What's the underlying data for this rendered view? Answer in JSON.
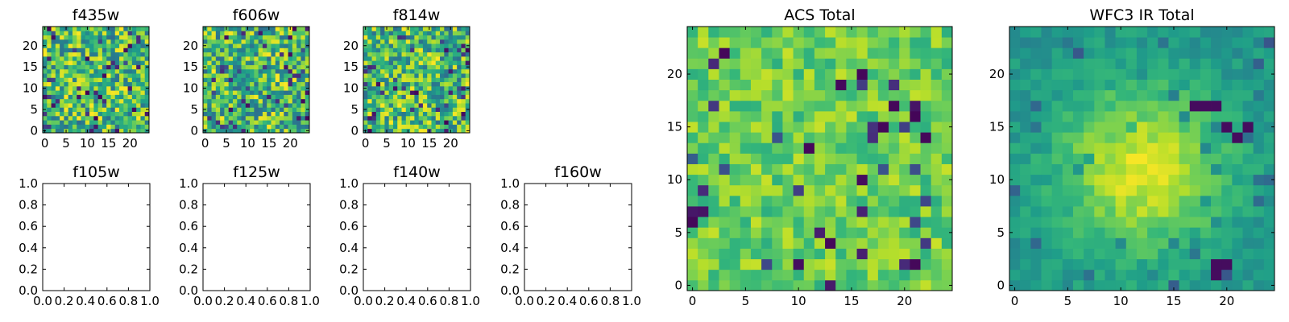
{
  "figure": {
    "panel_count": 9
  },
  "chart_data": [
    {
      "type": "heatmap",
      "title": "f435w",
      "grid_size": 25,
      "xlim": [
        -0.5,
        24.5
      ],
      "ylim": [
        -0.5,
        24.5
      ],
      "xticks": [
        0,
        5,
        10,
        15,
        20
      ],
      "yticks": [
        0,
        5,
        10,
        15,
        20
      ],
      "xtick_labels": [
        "0",
        "5",
        "10",
        "15",
        "20"
      ],
      "ytick_labels": [
        "0",
        "5",
        "10",
        "15",
        "20"
      ],
      "colormap": "viridis",
      "texture": "noise",
      "seed": 11
    },
    {
      "type": "heatmap",
      "title": "f606w",
      "grid_size": 25,
      "xlim": [
        -0.5,
        24.5
      ],
      "ylim": [
        -0.5,
        24.5
      ],
      "xticks": [
        0,
        5,
        10,
        15,
        20
      ],
      "yticks": [
        0,
        5,
        10,
        15,
        20
      ],
      "xtick_labels": [
        "0",
        "5",
        "10",
        "15",
        "20"
      ],
      "ytick_labels": [
        "0",
        "5",
        "10",
        "15",
        "20"
      ],
      "colormap": "viridis",
      "texture": "noise",
      "seed": 23
    },
    {
      "type": "heatmap",
      "title": "f814w",
      "grid_size": 25,
      "xlim": [
        -0.5,
        24.5
      ],
      "ylim": [
        -0.5,
        24.5
      ],
      "xticks": [
        0,
        5,
        10,
        15,
        20
      ],
      "yticks": [
        0,
        5,
        10,
        15,
        20
      ],
      "xtick_labels": [
        "0",
        "5",
        "10",
        "15",
        "20"
      ],
      "ytick_labels": [
        "0",
        "5",
        "10",
        "15",
        "20"
      ],
      "colormap": "viridis",
      "texture": "noise",
      "seed": 37
    },
    {
      "type": "empty",
      "title": "f105w",
      "xlim": [
        0,
        1
      ],
      "ylim": [
        0,
        1
      ],
      "xticks": [
        0,
        0.2,
        0.4,
        0.6,
        0.8,
        1.0
      ],
      "yticks": [
        0,
        0.2,
        0.4,
        0.6,
        0.8,
        1.0
      ],
      "xtick_labels": [
        "0.0",
        "0.2",
        "0.4",
        "0.6",
        "0.8",
        "1.0"
      ],
      "ytick_labels": [
        "0.0",
        "0.2",
        "0.4",
        "0.6",
        "0.8",
        "1.0"
      ]
    },
    {
      "type": "empty",
      "title": "f125w",
      "xlim": [
        0,
        1
      ],
      "ylim": [
        0,
        1
      ],
      "xticks": [
        0,
        0.2,
        0.4,
        0.6,
        0.8,
        1.0
      ],
      "yticks": [
        0,
        0.2,
        0.4,
        0.6,
        0.8,
        1.0
      ],
      "xtick_labels": [
        "0.0",
        "0.2",
        "0.4",
        "0.6",
        "0.8",
        "1.0"
      ],
      "ytick_labels": [
        "0.0",
        "0.2",
        "0.4",
        "0.6",
        "0.8",
        "1.0"
      ]
    },
    {
      "type": "empty",
      "title": "f140w",
      "xlim": [
        0,
        1
      ],
      "ylim": [
        0,
        1
      ],
      "xticks": [
        0,
        0.2,
        0.4,
        0.6,
        0.8,
        1.0
      ],
      "yticks": [
        0,
        0.2,
        0.4,
        0.6,
        0.8,
        1.0
      ],
      "xtick_labels": [
        "0.0",
        "0.2",
        "0.4",
        "0.6",
        "0.8",
        "1.0"
      ],
      "ytick_labels": [
        "0.0",
        "0.2",
        "0.4",
        "0.6",
        "0.8",
        "1.0"
      ]
    },
    {
      "type": "empty",
      "title": "f160w",
      "xlim": [
        0,
        1
      ],
      "ylim": [
        0,
        1
      ],
      "xticks": [
        0,
        0.2,
        0.4,
        0.6,
        0.8,
        1.0
      ],
      "yticks": [
        0,
        0.2,
        0.4,
        0.6,
        0.8,
        1.0
      ],
      "xtick_labels": [
        "0.0",
        "0.2",
        "0.4",
        "0.6",
        "0.8",
        "1.0"
      ],
      "ytick_labels": [
        "0.0",
        "0.2",
        "0.4",
        "0.6",
        "0.8",
        "1.0"
      ]
    },
    {
      "type": "heatmap",
      "title": "ACS Total",
      "grid_size": 25,
      "xlim": [
        -0.5,
        24.5
      ],
      "ylim": [
        -0.5,
        24.5
      ],
      "xticks": [
        0,
        5,
        10,
        15,
        20
      ],
      "yticks": [
        0,
        5,
        10,
        15,
        20
      ],
      "xtick_labels": [
        "0",
        "5",
        "10",
        "15",
        "20"
      ],
      "ytick_labels": [
        "0",
        "5",
        "10",
        "15",
        "20"
      ],
      "colormap": "viridis",
      "texture": "speckled",
      "seed": 53
    },
    {
      "type": "heatmap",
      "title": "WFC3 IR Total",
      "grid_size": 25,
      "xlim": [
        -0.5,
        24.5
      ],
      "ylim": [
        -0.5,
        24.5
      ],
      "xticks": [
        0,
        5,
        10,
        15,
        20
      ],
      "yticks": [
        0,
        5,
        10,
        15,
        20
      ],
      "xtick_labels": [
        "0",
        "5",
        "10",
        "15",
        "20"
      ],
      "ytick_labels": [
        "0",
        "5",
        "10",
        "15",
        "20"
      ],
      "colormap": "viridis",
      "texture": "smooth-center",
      "seed": 71,
      "bright_center": [
        12,
        11
      ],
      "dark_pixels": [
        [
          17,
          17
        ],
        [
          18,
          17
        ],
        [
          19,
          17
        ],
        [
          20,
          15
        ],
        [
          21,
          14
        ],
        [
          22,
          15
        ],
        [
          19,
          1
        ],
        [
          19,
          2
        ],
        [
          20,
          2
        ]
      ]
    }
  ]
}
